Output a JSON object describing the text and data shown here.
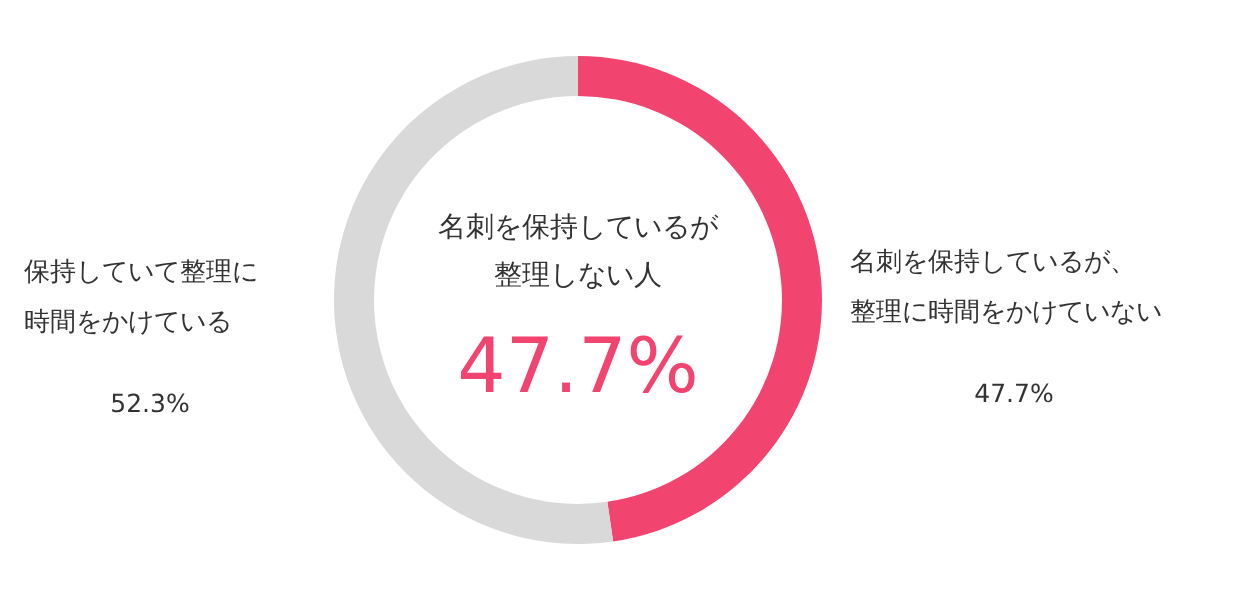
{
  "chart_data": {
    "type": "donut",
    "title": "名刺を保持しているが整理しない人",
    "categories": [
      "名刺を保持しているが、整理に時間をかけていない",
      "保持していて整理に時間をかけている"
    ],
    "values": [
      47.7,
      52.3
    ],
    "colors": [
      "#f1446f",
      "#d9d9d9"
    ],
    "value_labels": [
      "47.7%",
      "52.3%"
    ],
    "annotations": [
      "47.7%"
    ],
    "legend": false
  }
}
